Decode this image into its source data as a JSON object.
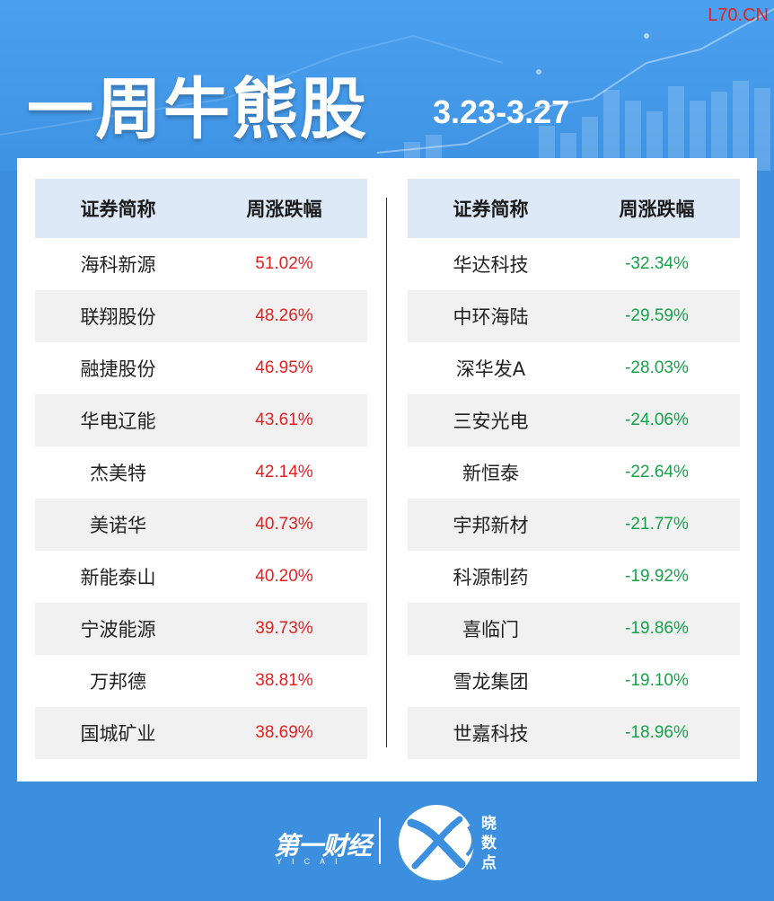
{
  "header": {
    "title": "一周牛熊股",
    "date_range": "3.23-3.27",
    "watermark": "L70.CN"
  },
  "columns": {
    "name": "证券简称",
    "change": "周涨跌幅"
  },
  "gainers": [
    {
      "name": "海科新源",
      "change": "51.02%"
    },
    {
      "name": "联翔股份",
      "change": "48.26%"
    },
    {
      "name": "融捷股份",
      "change": "46.95%"
    },
    {
      "name": "华电辽能",
      "change": "43.61%"
    },
    {
      "name": "杰美特",
      "change": "42.14%"
    },
    {
      "name": "美诺华",
      "change": "40.73%"
    },
    {
      "name": "新能泰山",
      "change": "40.20%"
    },
    {
      "name": "宁波能源",
      "change": "39.73%"
    },
    {
      "name": "万邦德",
      "change": "38.81%"
    },
    {
      "name": "国城矿业",
      "change": "38.69%"
    }
  ],
  "losers": [
    {
      "name": "华达科技",
      "change": "-32.34%"
    },
    {
      "name": "中环海陆",
      "change": "-29.59%"
    },
    {
      "name": "深华发A",
      "change": "-28.03%"
    },
    {
      "name": "三安光电",
      "change": "-24.06%"
    },
    {
      "name": "新恒泰",
      "change": "-22.64%"
    },
    {
      "name": "宇邦新材",
      "change": "-21.77%"
    },
    {
      "name": "科源制药",
      "change": "-19.92%"
    },
    {
      "name": "喜临门",
      "change": "-19.86%"
    },
    {
      "name": "雪龙集团",
      "change": "-19.10%"
    },
    {
      "name": "世嘉科技",
      "change": "-18.96%"
    }
  ],
  "footer": {
    "brand_cn": "第一财经",
    "brand_en": "YICAI",
    "sub_brand": "晓数点"
  },
  "colors": {
    "background": "#3b8fde",
    "gain": "#e52020",
    "loss": "#15a34a",
    "header_row": "#dde9f6"
  }
}
